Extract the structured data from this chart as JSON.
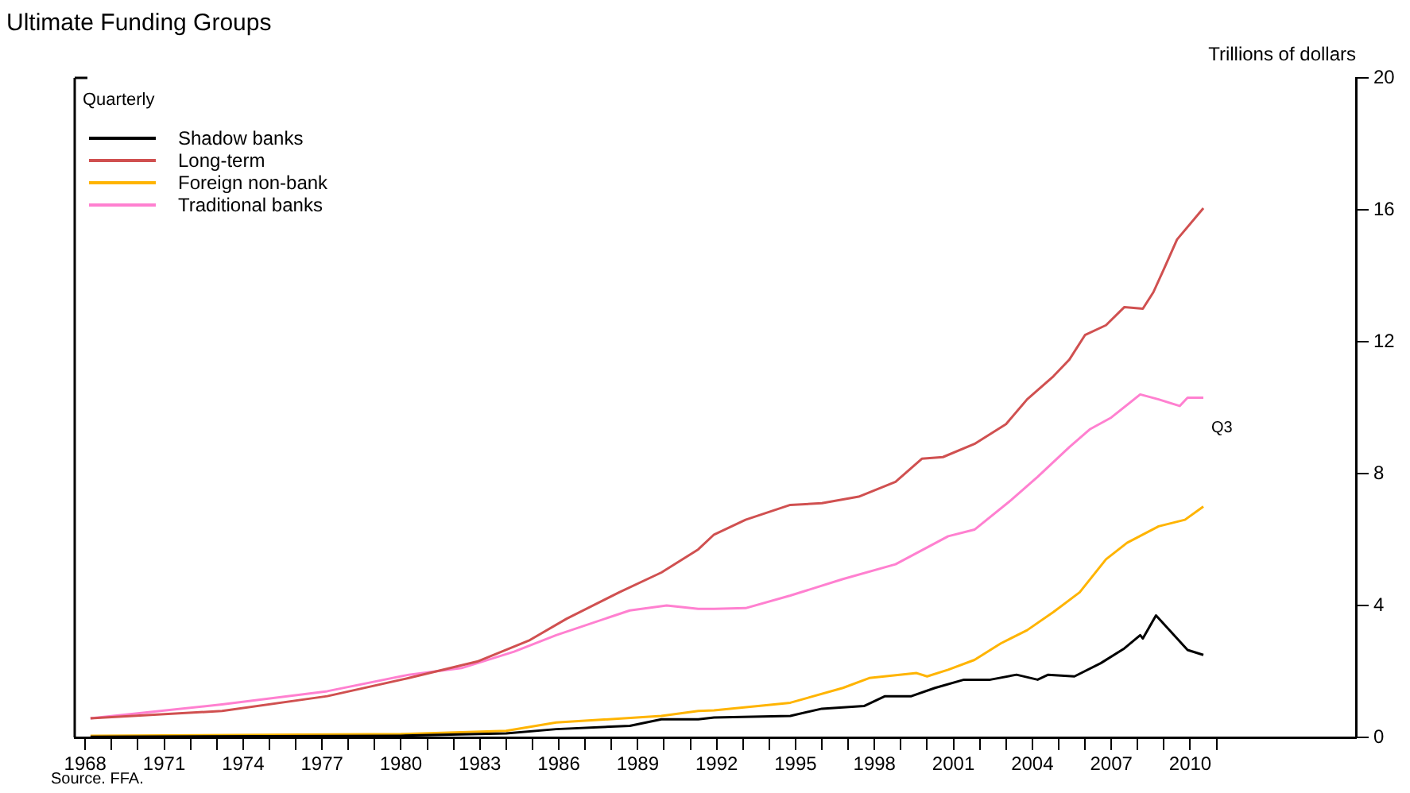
{
  "chart_data": {
    "type": "line",
    "title": "Ultimate Funding Groups",
    "ylabel": "Trillions of dollars",
    "legend_title": "Quarterly",
    "legend": "top left",
    "grid": false,
    "marker": "none",
    "line_style": "solid",
    "xlim": [
      1967.6,
      2016.3
    ],
    "ylim": [
      0,
      20
    ],
    "yticks": [
      0,
      4,
      8,
      12,
      16,
      20
    ],
    "xticks": [
      {
        "value": 1968,
        "label": "1968"
      },
      {
        "value": 1969,
        "label": null
      },
      {
        "value": 1970,
        "label": null
      },
      {
        "value": 1971,
        "label": "1971"
      },
      {
        "value": 1972,
        "label": null
      },
      {
        "value": 1973,
        "label": null
      },
      {
        "value": 1974,
        "label": "1974"
      },
      {
        "value": 1975,
        "label": null
      },
      {
        "value": 1976,
        "label": null
      },
      {
        "value": 1977,
        "label": "1977"
      },
      {
        "value": 1978,
        "label": null
      },
      {
        "value": 1979,
        "label": null
      },
      {
        "value": 1980,
        "label": "1980"
      },
      {
        "value": 1981,
        "label": null
      },
      {
        "value": 1982,
        "label": null
      },
      {
        "value": 1983,
        "label": "1983"
      },
      {
        "value": 1984,
        "label": null
      },
      {
        "value": 1985,
        "label": null
      },
      {
        "value": 1986,
        "label": "1986"
      },
      {
        "value": 1987,
        "label": null
      },
      {
        "value": 1988,
        "label": null
      },
      {
        "value": 1989,
        "label": "1989"
      },
      {
        "value": 1990,
        "label": null
      },
      {
        "value": 1991,
        "label": null
      },
      {
        "value": 1992,
        "label": "1992"
      },
      {
        "value": 1993,
        "label": null
      },
      {
        "value": 1994,
        "label": null
      },
      {
        "value": 1995,
        "label": "1995"
      },
      {
        "value": 1996,
        "label": null
      },
      {
        "value": 1997,
        "label": null
      },
      {
        "value": 1998,
        "label": "1998"
      },
      {
        "value": 1999,
        "label": null
      },
      {
        "value": 2000,
        "label": null
      },
      {
        "value": 2001,
        "label": "2001"
      },
      {
        "value": 2002,
        "label": null
      },
      {
        "value": 2003,
        "label": null
      },
      {
        "value": 2004,
        "label": "2004"
      },
      {
        "value": 2005,
        "label": null
      },
      {
        "value": 2006,
        "label": null
      },
      {
        "value": 2007,
        "label": "2007"
      },
      {
        "value": 2008,
        "label": null
      },
      {
        "value": 2009,
        "label": null
      },
      {
        "value": 2010,
        "label": "2010"
      },
      {
        "value": 2011,
        "label": null
      }
    ],
    "annotations": [
      "Q3",
      "Source. FFA."
    ],
    "series": [
      {
        "name": "Shadow banks",
        "color": "#000000",
        "x": [
          1968.2,
          1980,
          1984,
          1985.9,
          1988.7,
          1989.9,
          1991.3,
          1991.9,
          1994.8,
          1996.0,
          1997.6,
          1998.4,
          1999.4,
          2000.3,
          2001.4,
          2002.4,
          2003.4,
          2004.2,
          2004.6,
          2005.6,
          2006.6,
          2007.5,
          2008.1,
          2008.2,
          2008.7,
          2009.1,
          2009.9,
          2010.5
        ],
        "values": [
          0.02,
          0.05,
          0.12,
          0.25,
          0.35,
          0.55,
          0.55,
          0.6,
          0.65,
          0.87,
          0.95,
          1.25,
          1.25,
          1.5,
          1.75,
          1.75,
          1.9,
          1.75,
          1.9,
          1.85,
          2.25,
          2.7,
          3.1,
          3.0,
          3.7,
          3.35,
          2.65,
          2.5
        ]
      },
      {
        "name": "Long-term",
        "color": "#d05050",
        "x": [
          1968.2,
          1973.2,
          1977.2,
          1980.3,
          1982.9,
          1984.9,
          1986.3,
          1988.3,
          1989.9,
          1991.3,
          1991.9,
          1993.1,
          1994.8,
          1996.0,
          1997.4,
          1998.8,
          1999.8,
          2000.6,
          2001.8,
          2003.0,
          2003.8,
          2004.8,
          2005.4,
          2006.0,
          2006.8,
          2007.5,
          2008.2,
          2008.6,
          2009.0,
          2009.5,
          2010.5
        ],
        "values": [
          0.58,
          0.8,
          1.25,
          1.8,
          2.3,
          2.95,
          3.6,
          4.4,
          5.0,
          5.7,
          6.15,
          6.6,
          7.05,
          7.1,
          7.3,
          7.75,
          8.45,
          8.5,
          8.9,
          9.5,
          10.25,
          10.95,
          11.45,
          12.2,
          12.5,
          13.05,
          13.0,
          13.5,
          14.2,
          15.1,
          16.05
        ]
      },
      {
        "name": "Foreign non-bank",
        "color": "#ffb400",
        "x": [
          1968.2,
          1980,
          1984,
          1985.9,
          1989.9,
          1991.3,
          1991.9,
          1994.8,
          1996.8,
          1997.8,
          1999.6,
          2000.0,
          2000.8,
          2001.8,
          2002.8,
          2003.8,
          2004.8,
          2005.8,
          2006.8,
          2007.6,
          2008.8,
          2009.8,
          2010.5
        ],
        "values": [
          0.05,
          0.1,
          0.2,
          0.45,
          0.65,
          0.8,
          0.82,
          1.05,
          1.5,
          1.8,
          1.95,
          1.85,
          2.05,
          2.35,
          2.85,
          3.25,
          3.8,
          4.4,
          5.4,
          5.9,
          6.4,
          6.6,
          7.0
        ]
      },
      {
        "name": "Traditional banks",
        "color": "#ff80d0",
        "x": [
          1968.2,
          1973.2,
          1977.2,
          1980.3,
          1982.3,
          1984.3,
          1985.9,
          1988.7,
          1990.1,
          1991.3,
          1991.9,
          1993.1,
          1994.8,
          1996.8,
          1998.8,
          2000.8,
          2001.8,
          2003.2,
          2004.2,
          2005.4,
          2006.2,
          2007.0,
          2008.1,
          2008.8,
          2009.6,
          2009.9,
          2010.5
        ],
        "values": [
          0.58,
          1.0,
          1.4,
          1.9,
          2.1,
          2.6,
          3.1,
          3.85,
          4.0,
          3.9,
          3.9,
          3.92,
          4.3,
          4.8,
          5.25,
          6.1,
          6.3,
          7.2,
          7.9,
          8.8,
          9.35,
          9.7,
          10.4,
          10.25,
          10.05,
          10.3,
          10.3
        ]
      }
    ]
  }
}
